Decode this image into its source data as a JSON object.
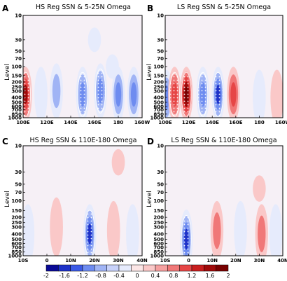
{
  "chart_data": [
    {
      "type": "heatmap",
      "panel_label": "A",
      "title": "HS Reg SSN & 5-25N Omega",
      "ylabel": "Level",
      "x_ticks": [
        "100E",
        "120E",
        "140E",
        "160E",
        "180",
        "160W"
      ],
      "y_ticks": [
        "10",
        "30",
        "50",
        "70",
        "100",
        "150",
        "200",
        "250",
        "300",
        "400",
        "500",
        "600",
        "700",
        "850",
        "1000"
      ],
      "y_scale": "log-pressure (inverted)",
      "blobs": [
        {
          "x": 102,
          "p": 350,
          "value": 1.6
        },
        {
          "x": 115,
          "p": 350,
          "value": -0.4
        },
        {
          "x": 128,
          "p": 300,
          "value": -0.8
        },
        {
          "x": 150,
          "p": 350,
          "value": -1.2
        },
        {
          "x": 165,
          "p": 300,
          "value": -1.2
        },
        {
          "x": 180,
          "p": 350,
          "value": -1.0
        },
        {
          "x": 193,
          "p": 350,
          "value": -1.0
        },
        {
          "x": 160,
          "p": 30,
          "value": -0.4
        },
        {
          "x": 175,
          "p": 100,
          "value": -0.4
        }
      ]
    },
    {
      "type": "heatmap",
      "panel_label": "B",
      "title": "LS Reg SSN & 5-25N Omega",
      "ylabel": "Level",
      "x_ticks": [
        "100E",
        "120E",
        "140E",
        "160E",
        "180",
        "160W"
      ],
      "y_ticks": [
        "10",
        "30",
        "50",
        "70",
        "100",
        "150",
        "200",
        "250",
        "300",
        "400",
        "500",
        "600",
        "700",
        "850",
        "1000"
      ],
      "y_scale": "log-pressure (inverted)",
      "blobs": [
        {
          "x": 101,
          "p": 400,
          "value": -1.0
        },
        {
          "x": 108,
          "p": 350,
          "value": 1.2
        },
        {
          "x": 118,
          "p": 350,
          "value": 2.0
        },
        {
          "x": 132,
          "p": 350,
          "value": -1.2
        },
        {
          "x": 145,
          "p": 350,
          "value": -1.6
        },
        {
          "x": 158,
          "p": 350,
          "value": 1.0
        },
        {
          "x": 180,
          "p": 400,
          "value": -0.6
        },
        {
          "x": 195,
          "p": 400,
          "value": 0.4
        }
      ]
    },
    {
      "type": "heatmap",
      "panel_label": "C",
      "title": "HS Reg SSN & 110E-180 Omega",
      "ylabel": "Level",
      "x_ticks": [
        "10S",
        "0",
        "10N",
        "20N",
        "30N",
        "40N"
      ],
      "y_ticks": [
        "10",
        "30",
        "50",
        "70",
        "100",
        "150",
        "200",
        "250",
        "300",
        "400",
        "500",
        "600",
        "700",
        "850",
        "1000"
      ],
      "y_scale": "log-pressure (inverted)",
      "blobs": [
        {
          "x": -8,
          "p": 400,
          "value": -0.6
        },
        {
          "x": 4,
          "p": 300,
          "value": 0.4
        },
        {
          "x": 18,
          "p": 400,
          "value": -1.6
        },
        {
          "x": 28,
          "p": 350,
          "value": 0.4
        },
        {
          "x": 36,
          "p": 400,
          "value": -0.4
        },
        {
          "x": 30,
          "p": 20,
          "value": 0.2
        }
      ]
    },
    {
      "type": "heatmap",
      "panel_label": "D",
      "title": "LS Reg SSN & 110E-180 Omega",
      "ylabel": "Level",
      "x_ticks": [
        "10S",
        "0",
        "10N",
        "20N",
        "30N",
        "40N"
      ],
      "y_ticks": [
        "10",
        "30",
        "50",
        "70",
        "100",
        "150",
        "200",
        "250",
        "300",
        "400",
        "500",
        "600",
        "700",
        "850",
        "1000"
      ],
      "y_scale": "log-pressure (inverted)",
      "blobs": [
        {
          "x": -1,
          "p": 500,
          "value": -1.6
        },
        {
          "x": 12,
          "p": 350,
          "value": 0.8
        },
        {
          "x": 22,
          "p": 350,
          "value": -0.6
        },
        {
          "x": 31,
          "p": 400,
          "value": 0.8
        },
        {
          "x": 37,
          "p": 400,
          "value": -0.6
        },
        {
          "x": 30,
          "p": 60,
          "value": 0.3
        }
      ]
    }
  ],
  "colorbar": {
    "ticks": [
      "-2",
      "-1.6",
      "-1.2",
      "-0.8",
      "-0.4",
      "0",
      "0.4",
      "0.8",
      "1.2",
      "1.6",
      "2"
    ],
    "colors": [
      "#0a0a96",
      "#1e32c8",
      "#3c5ae6",
      "#6e8cf0",
      "#a0b4f5",
      "#c8d2fa",
      "#e6ebfc",
      "#fce6e6",
      "#fac8c8",
      "#f5a0a0",
      "#f07878",
      "#e64646",
      "#c81e1e",
      "#a00a0a",
      "#780000"
    ]
  }
}
